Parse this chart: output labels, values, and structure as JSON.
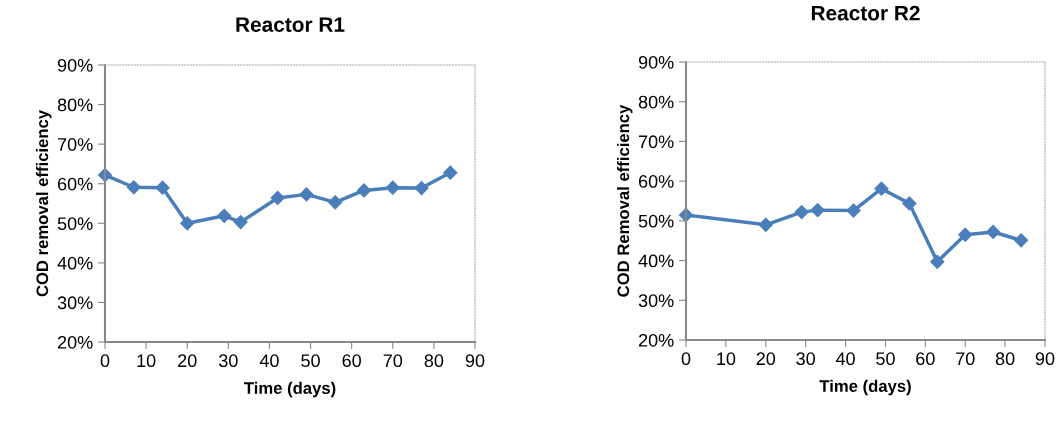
{
  "chart_data": [
    {
      "type": "line",
      "title": "Reactor R1",
      "xlabel": "Time (days)",
      "ylabel": "COD removal efficiency",
      "x": [
        0,
        7,
        14,
        20,
        29,
        33,
        42,
        49,
        56,
        63,
        70,
        77,
        84
      ],
      "series": [
        {
          "color": "#4a7ebb",
          "values": [
            62.2,
            59.1,
            59.0,
            50.0,
            51.9,
            50.3,
            56.4,
            57.3,
            55.3,
            58.3,
            59.0,
            58.9,
            62.8
          ]
        }
      ],
      "xlim": [
        0,
        90
      ],
      "xticks": [
        0,
        10,
        20,
        30,
        40,
        50,
        60,
        70,
        80,
        90
      ],
      "ylim": [
        20,
        90
      ],
      "yticks": [
        {
          "value": 20,
          "label": "20%"
        },
        {
          "value": 30,
          "label": "30%"
        },
        {
          "value": 40,
          "label": "40%"
        },
        {
          "value": 50,
          "label": "50%"
        },
        {
          "value": 60,
          "label": "60%"
        },
        {
          "value": 70,
          "label": "70%"
        },
        {
          "value": 80,
          "label": "80%"
        },
        {
          "value": 90,
          "label": "90%"
        }
      ],
      "marker": "diamond",
      "line_style": "solid",
      "grid": false,
      "legend": false
    },
    {
      "type": "line",
      "title": "Reactor R2",
      "xlabel": "Time (days)",
      "ylabel": "COD Removal efficiency",
      "x": [
        0,
        20,
        29,
        33,
        42,
        49,
        56,
        63,
        70,
        77,
        84
      ],
      "series": [
        {
          "color": "#4a7ebb",
          "values": [
            51.5,
            49.0,
            52.2,
            52.7,
            52.6,
            58.1,
            54.4,
            39.7,
            46.5,
            47.2,
            45.1
          ]
        }
      ],
      "xlim": [
        0,
        90
      ],
      "xticks": [
        0,
        10,
        20,
        30,
        40,
        50,
        60,
        70,
        80,
        90
      ],
      "ylim": [
        20,
        90
      ],
      "yticks": [
        {
          "value": 20,
          "label": "20%"
        },
        {
          "value": 30,
          "label": "30%"
        },
        {
          "value": 40,
          "label": "40%"
        },
        {
          "value": 50,
          "label": "50%"
        },
        {
          "value": 60,
          "label": "60%"
        },
        {
          "value": 70,
          "label": "70%"
        },
        {
          "value": 80,
          "label": "80%"
        },
        {
          "value": 90,
          "label": "90%"
        }
      ],
      "marker": "diamond",
      "line_style": "solid",
      "grid": false,
      "legend": false
    }
  ]
}
